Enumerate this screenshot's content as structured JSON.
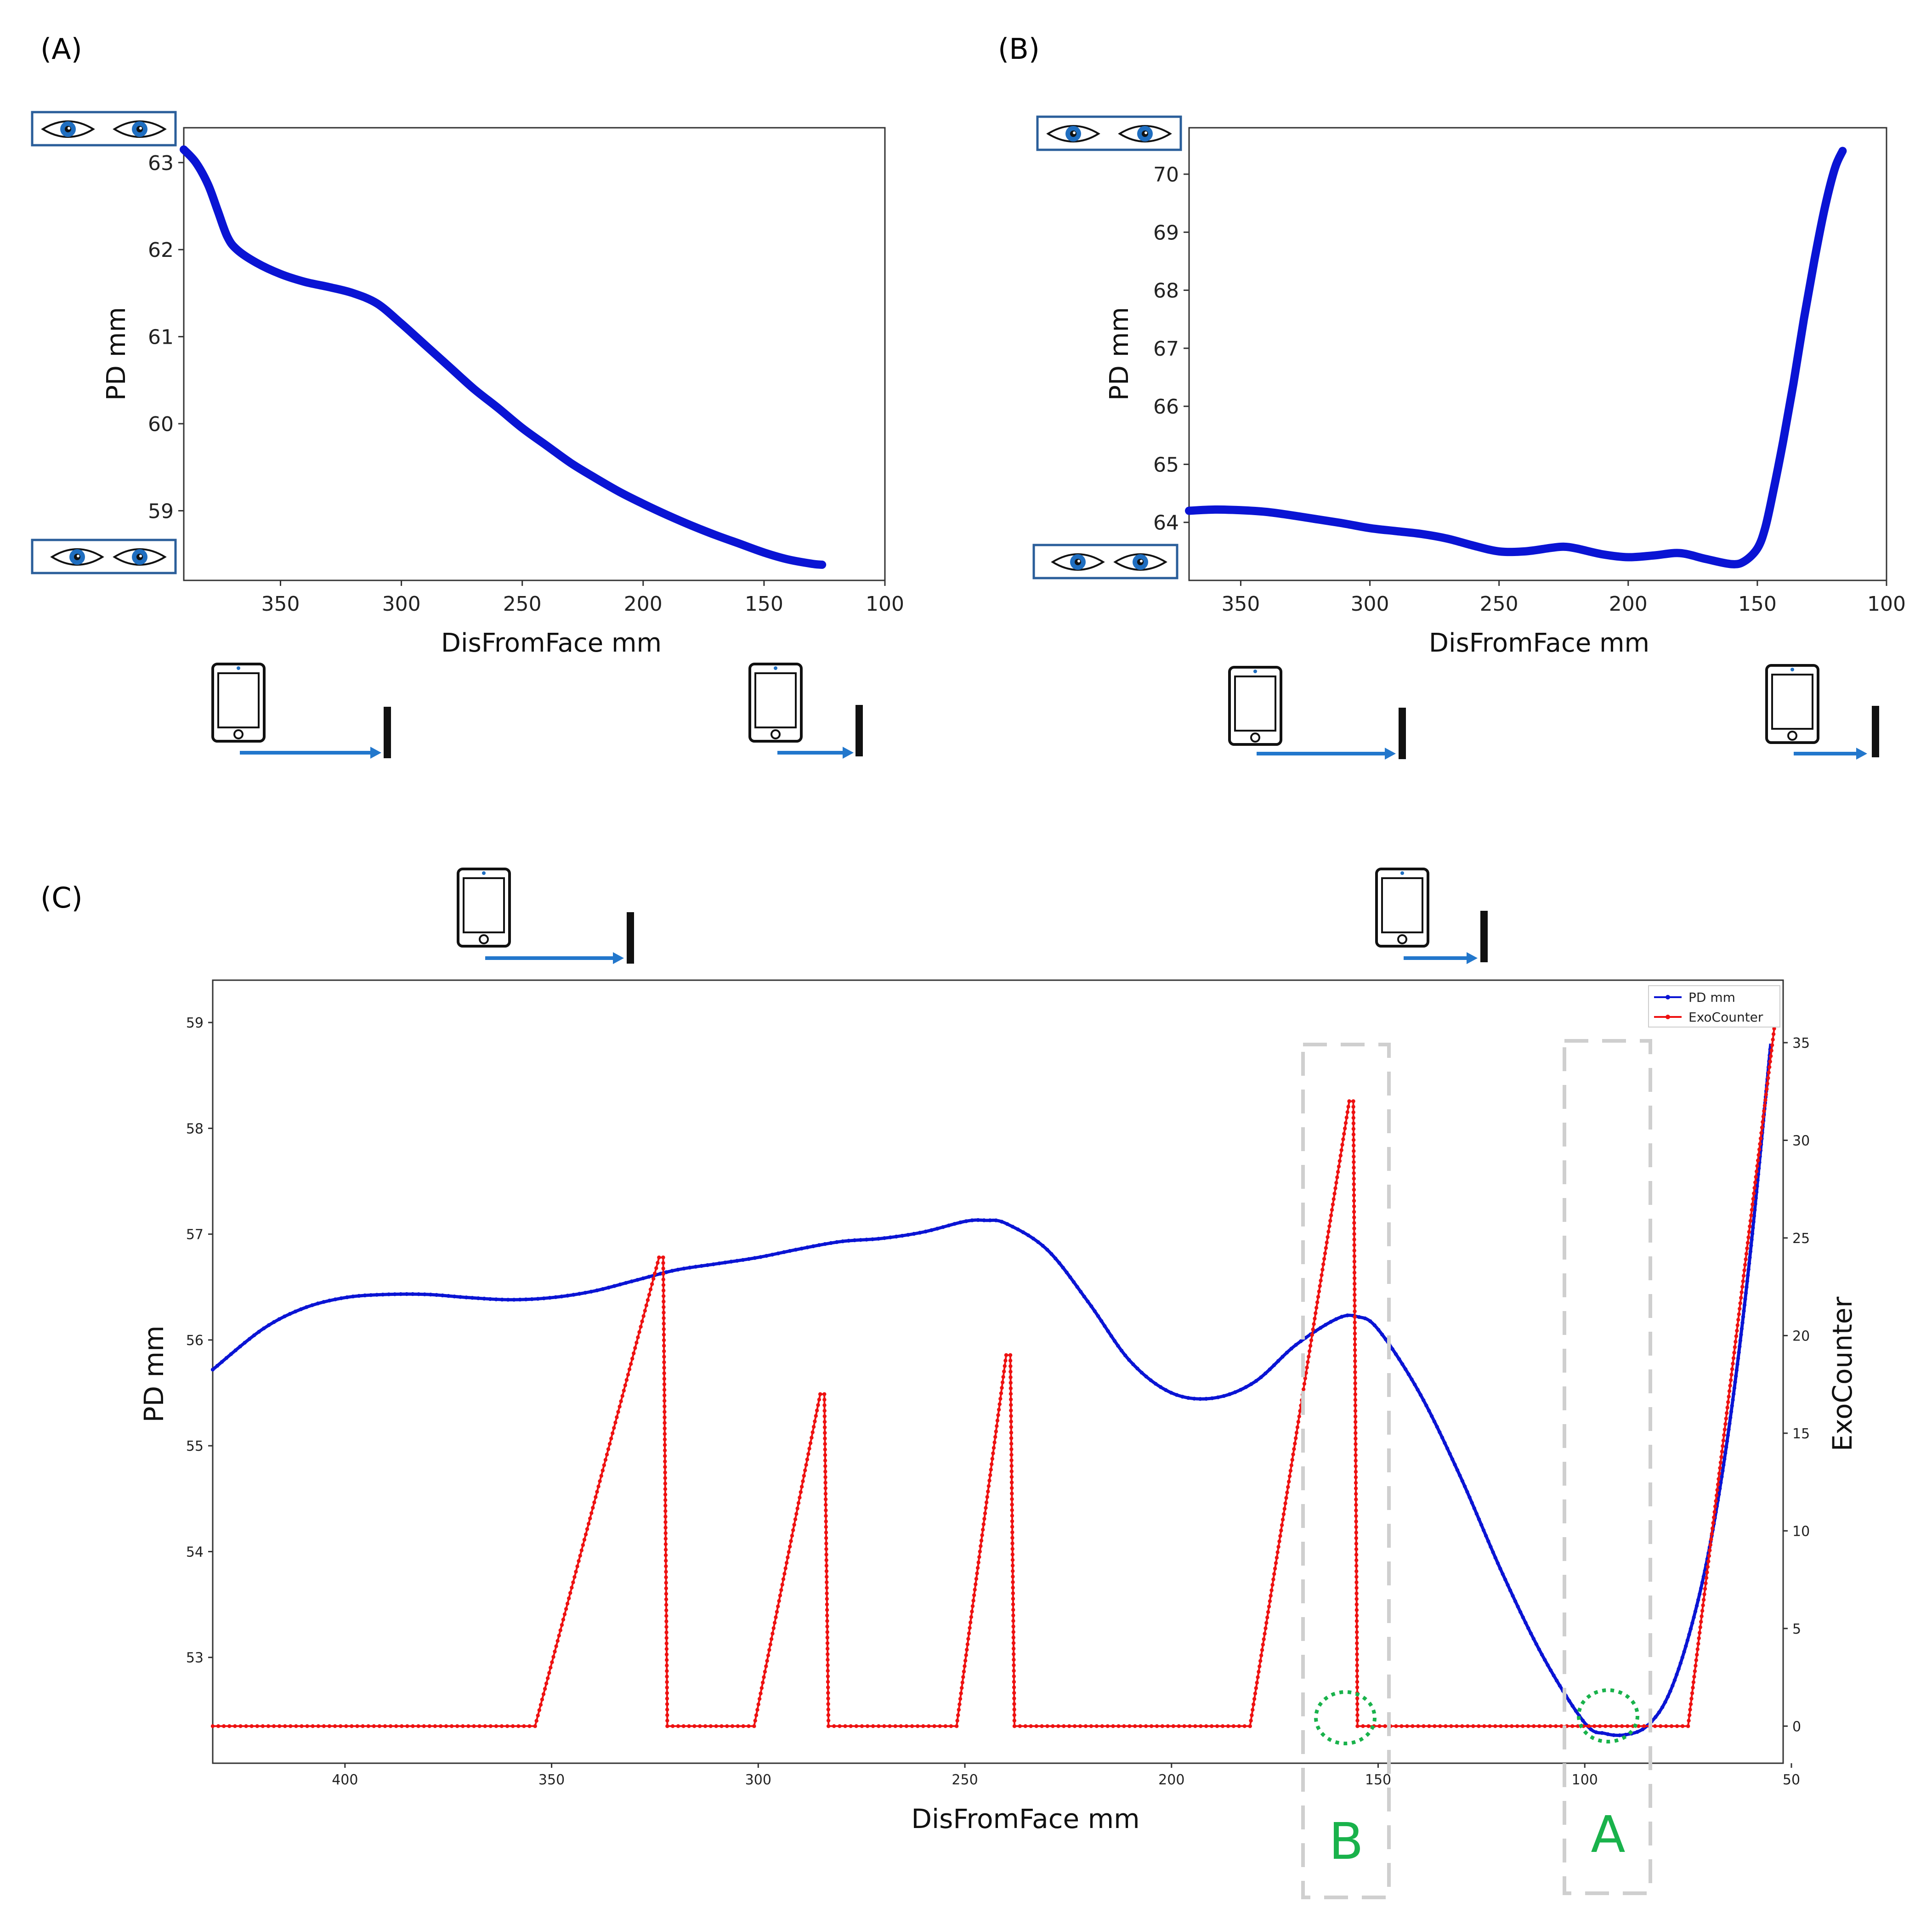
{
  "figure": {
    "panel_labels": [
      "(A)",
      "(B)",
      "(C)"
    ]
  },
  "colors": {
    "pd": "#0a14d4",
    "exo": "#ee1111",
    "arrow": "#2277cc",
    "eye_box": "#2a5e9a",
    "eye_iris": "#1f6ec0",
    "dash_box": "#cfcfcf",
    "green": "#19b24b"
  },
  "icons": [
    "eye-icon",
    "phone-icon",
    "arrow-right-icon",
    "barrier-icon"
  ],
  "chart_data": [
    {
      "id": "A",
      "type": "line",
      "xlabel": "DisFromFace mm",
      "ylabel": "PD mm",
      "xlim": [
        390,
        100
      ],
      "ylim": [
        58.2,
        63.4
      ],
      "xticks": [
        350,
        300,
        250,
        200,
        150,
        100
      ],
      "yticks": [
        59,
        60,
        61,
        62,
        63
      ],
      "series": [
        {
          "name": "PD mm",
          "x": [
            390,
            385,
            380,
            376,
            372,
            368,
            360,
            350,
            340,
            330,
            320,
            310,
            300,
            290,
            280,
            270,
            260,
            250,
            240,
            230,
            220,
            210,
            200,
            190,
            180,
            170,
            160,
            150,
            140,
            130,
            126
          ],
          "y": [
            63.15,
            63.0,
            62.75,
            62.45,
            62.15,
            62.0,
            61.85,
            61.72,
            61.63,
            61.57,
            61.5,
            61.38,
            61.15,
            60.9,
            60.65,
            60.4,
            60.18,
            59.95,
            59.75,
            59.55,
            59.38,
            59.22,
            59.08,
            58.95,
            58.83,
            58.72,
            58.62,
            58.52,
            58.44,
            58.39,
            58.38
          ]
        }
      ]
    },
    {
      "id": "B",
      "type": "line",
      "xlabel": "DisFromFace mm",
      "ylabel": "PD mm",
      "xlim": [
        370,
        100
      ],
      "ylim": [
        63.0,
        70.8
      ],
      "xticks": [
        350,
        300,
        250,
        200,
        150,
        100
      ],
      "yticks": [
        64,
        65,
        66,
        67,
        68,
        69,
        70
      ],
      "series": [
        {
          "name": "PD mm",
          "x": [
            370,
            360,
            350,
            340,
            330,
            320,
            310,
            300,
            290,
            280,
            270,
            260,
            250,
            240,
            230,
            225,
            220,
            210,
            200,
            190,
            180,
            170,
            160,
            155,
            150,
            147,
            144,
            140,
            136,
            132,
            128,
            124,
            120,
            117
          ],
          "y": [
            64.2,
            64.22,
            64.21,
            64.18,
            64.12,
            64.05,
            63.98,
            63.9,
            63.85,
            63.8,
            63.72,
            63.6,
            63.5,
            63.5,
            63.56,
            63.58,
            63.55,
            63.45,
            63.4,
            63.43,
            63.47,
            63.37,
            63.28,
            63.33,
            63.55,
            63.9,
            64.5,
            65.4,
            66.4,
            67.5,
            68.5,
            69.4,
            70.1,
            70.4
          ]
        }
      ]
    },
    {
      "id": "C",
      "type": "line",
      "xlabel": "DisFromFace mm",
      "ylabel": "PD mm",
      "ylabel_right": "ExoCounter",
      "xlim": [
        432,
        52
      ],
      "ylim": [
        52.0,
        59.4
      ],
      "ylim_right": [
        -1.9,
        38.2
      ],
      "xticks": [
        400,
        350,
        300,
        250,
        200,
        150,
        100,
        50
      ],
      "yticks": [
        53,
        54,
        55,
        56,
        57,
        58,
        59
      ],
      "yticks_right": [
        0,
        5,
        10,
        15,
        20,
        25,
        30,
        35
      ],
      "legend": [
        "PD mm",
        "ExoCounter"
      ],
      "legend_position": "top-right",
      "series": [
        {
          "name": "PD mm",
          "axis": "left",
          "x": [
            432,
            420,
            410,
            400,
            390,
            380,
            370,
            360,
            350,
            340,
            330,
            320,
            310,
            300,
            290,
            280,
            270,
            260,
            250,
            245,
            240,
            230,
            220,
            210,
            200,
            190,
            180,
            170,
            160,
            155,
            150,
            140,
            130,
            120,
            110,
            100,
            95,
            90,
            85,
            80,
            75,
            70,
            65,
            60,
            55
          ],
          "y": [
            55.72,
            56.1,
            56.3,
            56.4,
            56.43,
            56.43,
            56.4,
            56.38,
            56.4,
            56.46,
            56.56,
            56.66,
            56.72,
            56.78,
            56.86,
            56.93,
            56.96,
            57.02,
            57.12,
            57.13,
            57.1,
            56.85,
            56.35,
            55.8,
            55.5,
            55.45,
            55.6,
            55.95,
            56.2,
            56.22,
            56.1,
            55.5,
            54.7,
            53.8,
            53.0,
            52.38,
            52.28,
            52.27,
            52.35,
            52.62,
            53.18,
            54.0,
            55.2,
            56.8,
            58.8
          ]
        },
        {
          "name": "ExoCounter",
          "axis": "right",
          "x": [
            432,
            354,
            324,
            323,
            322,
            301,
            285,
            284,
            283,
            252,
            240,
            239,
            238,
            181,
            157,
            156,
            155,
            75,
            54
          ],
          "y": [
            0,
            0,
            24,
            24,
            0,
            0,
            17,
            17,
            0,
            0,
            19,
            19,
            0,
            0,
            32,
            32,
            0,
            0,
            36
          ]
        }
      ],
      "annotations": [
        {
          "label": "B",
          "x_range": [
            168,
            147
          ]
        },
        {
          "label": "A",
          "x_range": [
            105,
            84
          ]
        }
      ]
    }
  ]
}
